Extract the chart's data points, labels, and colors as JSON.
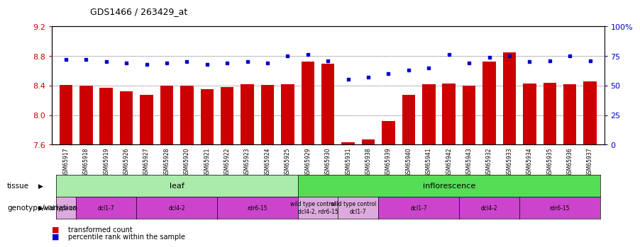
{
  "title": "GDS1466 / 263429_at",
  "samples": [
    "GSM65917",
    "GSM65918",
    "GSM65919",
    "GSM65926",
    "GSM65927",
    "GSM65928",
    "GSM65920",
    "GSM65921",
    "GSM65922",
    "GSM65923",
    "GSM65924",
    "GSM65925",
    "GSM65929",
    "GSM65930",
    "GSM65931",
    "GSM65938",
    "GSM65939",
    "GSM65940",
    "GSM65941",
    "GSM65942",
    "GSM65943",
    "GSM65932",
    "GSM65933",
    "GSM65934",
    "GSM65935",
    "GSM65936",
    "GSM65937"
  ],
  "transformed_count": [
    8.41,
    8.4,
    8.37,
    8.32,
    8.27,
    8.4,
    8.4,
    8.35,
    8.38,
    8.42,
    8.41,
    8.42,
    8.72,
    8.7,
    7.63,
    7.67,
    7.92,
    8.27,
    8.42,
    8.43,
    8.4,
    8.72,
    8.85,
    8.43,
    8.44,
    8.42,
    8.46
  ],
  "percentile_rank": [
    72,
    72,
    70,
    69,
    68,
    69,
    70,
    68,
    69,
    70,
    69,
    75,
    76,
    71,
    55,
    57,
    60,
    63,
    65,
    76,
    69,
    74,
    75,
    70,
    71,
    75,
    71
  ],
  "ylim_left": [
    7.6,
    9.2
  ],
  "ylim_right": [
    0,
    100
  ],
  "yticks_left": [
    7.6,
    8.0,
    8.4,
    8.8,
    9.2
  ],
  "yticks_right": [
    0,
    25,
    50,
    75,
    100
  ],
  "ytick_labels_right": [
    "0",
    "25",
    "50",
    "75",
    "100%"
  ],
  "bar_color": "#cc0000",
  "dot_color": "#0000cc",
  "grid_color": "#000000",
  "tissue_leaf_label": "leaf",
  "tissue_inflorescence_label": "inflorescence",
  "tissue_leaf_color": "#aaeaaa",
  "tissue_inflorescence_color": "#55dd55",
  "genotype_groups": [
    {
      "label": "wild type control",
      "start": 0,
      "end": 0,
      "color": "#ddaadd"
    },
    {
      "label": "dcl1-7",
      "start": 1,
      "end": 3,
      "color": "#cc44cc"
    },
    {
      "label": "dcl4-2",
      "start": 4,
      "end": 7,
      "color": "#cc44cc"
    },
    {
      "label": "rdr6-15",
      "start": 8,
      "end": 11,
      "color": "#cc44cc"
    },
    {
      "label": "wild type control for\ndcl4-2, rdr6-15",
      "start": 12,
      "end": 13,
      "color": "#ddaadd"
    },
    {
      "label": "wild type control for\ndcl1-7",
      "start": 14,
      "end": 15,
      "color": "#ddaadd"
    },
    {
      "label": "dcl1-7",
      "start": 16,
      "end": 19,
      "color": "#cc44cc"
    },
    {
      "label": "dcl4-2",
      "start": 20,
      "end": 22,
      "color": "#cc44cc"
    },
    {
      "label": "rdr6-15",
      "start": 23,
      "end": 26,
      "color": "#cc44cc"
    }
  ],
  "legend_bar_label": "transformed count",
  "legend_dot_label": "percentile rank within the sample",
  "tissue_row_label": "tissue",
  "genotype_row_label": "genotype/variation",
  "bg_color": "#ffffff",
  "plot_bg_color": "#ffffff",
  "tick_label_color_left": "#cc0000",
  "tick_label_color_right": "#0000cc",
  "xtick_bg_color": "#cccccc"
}
